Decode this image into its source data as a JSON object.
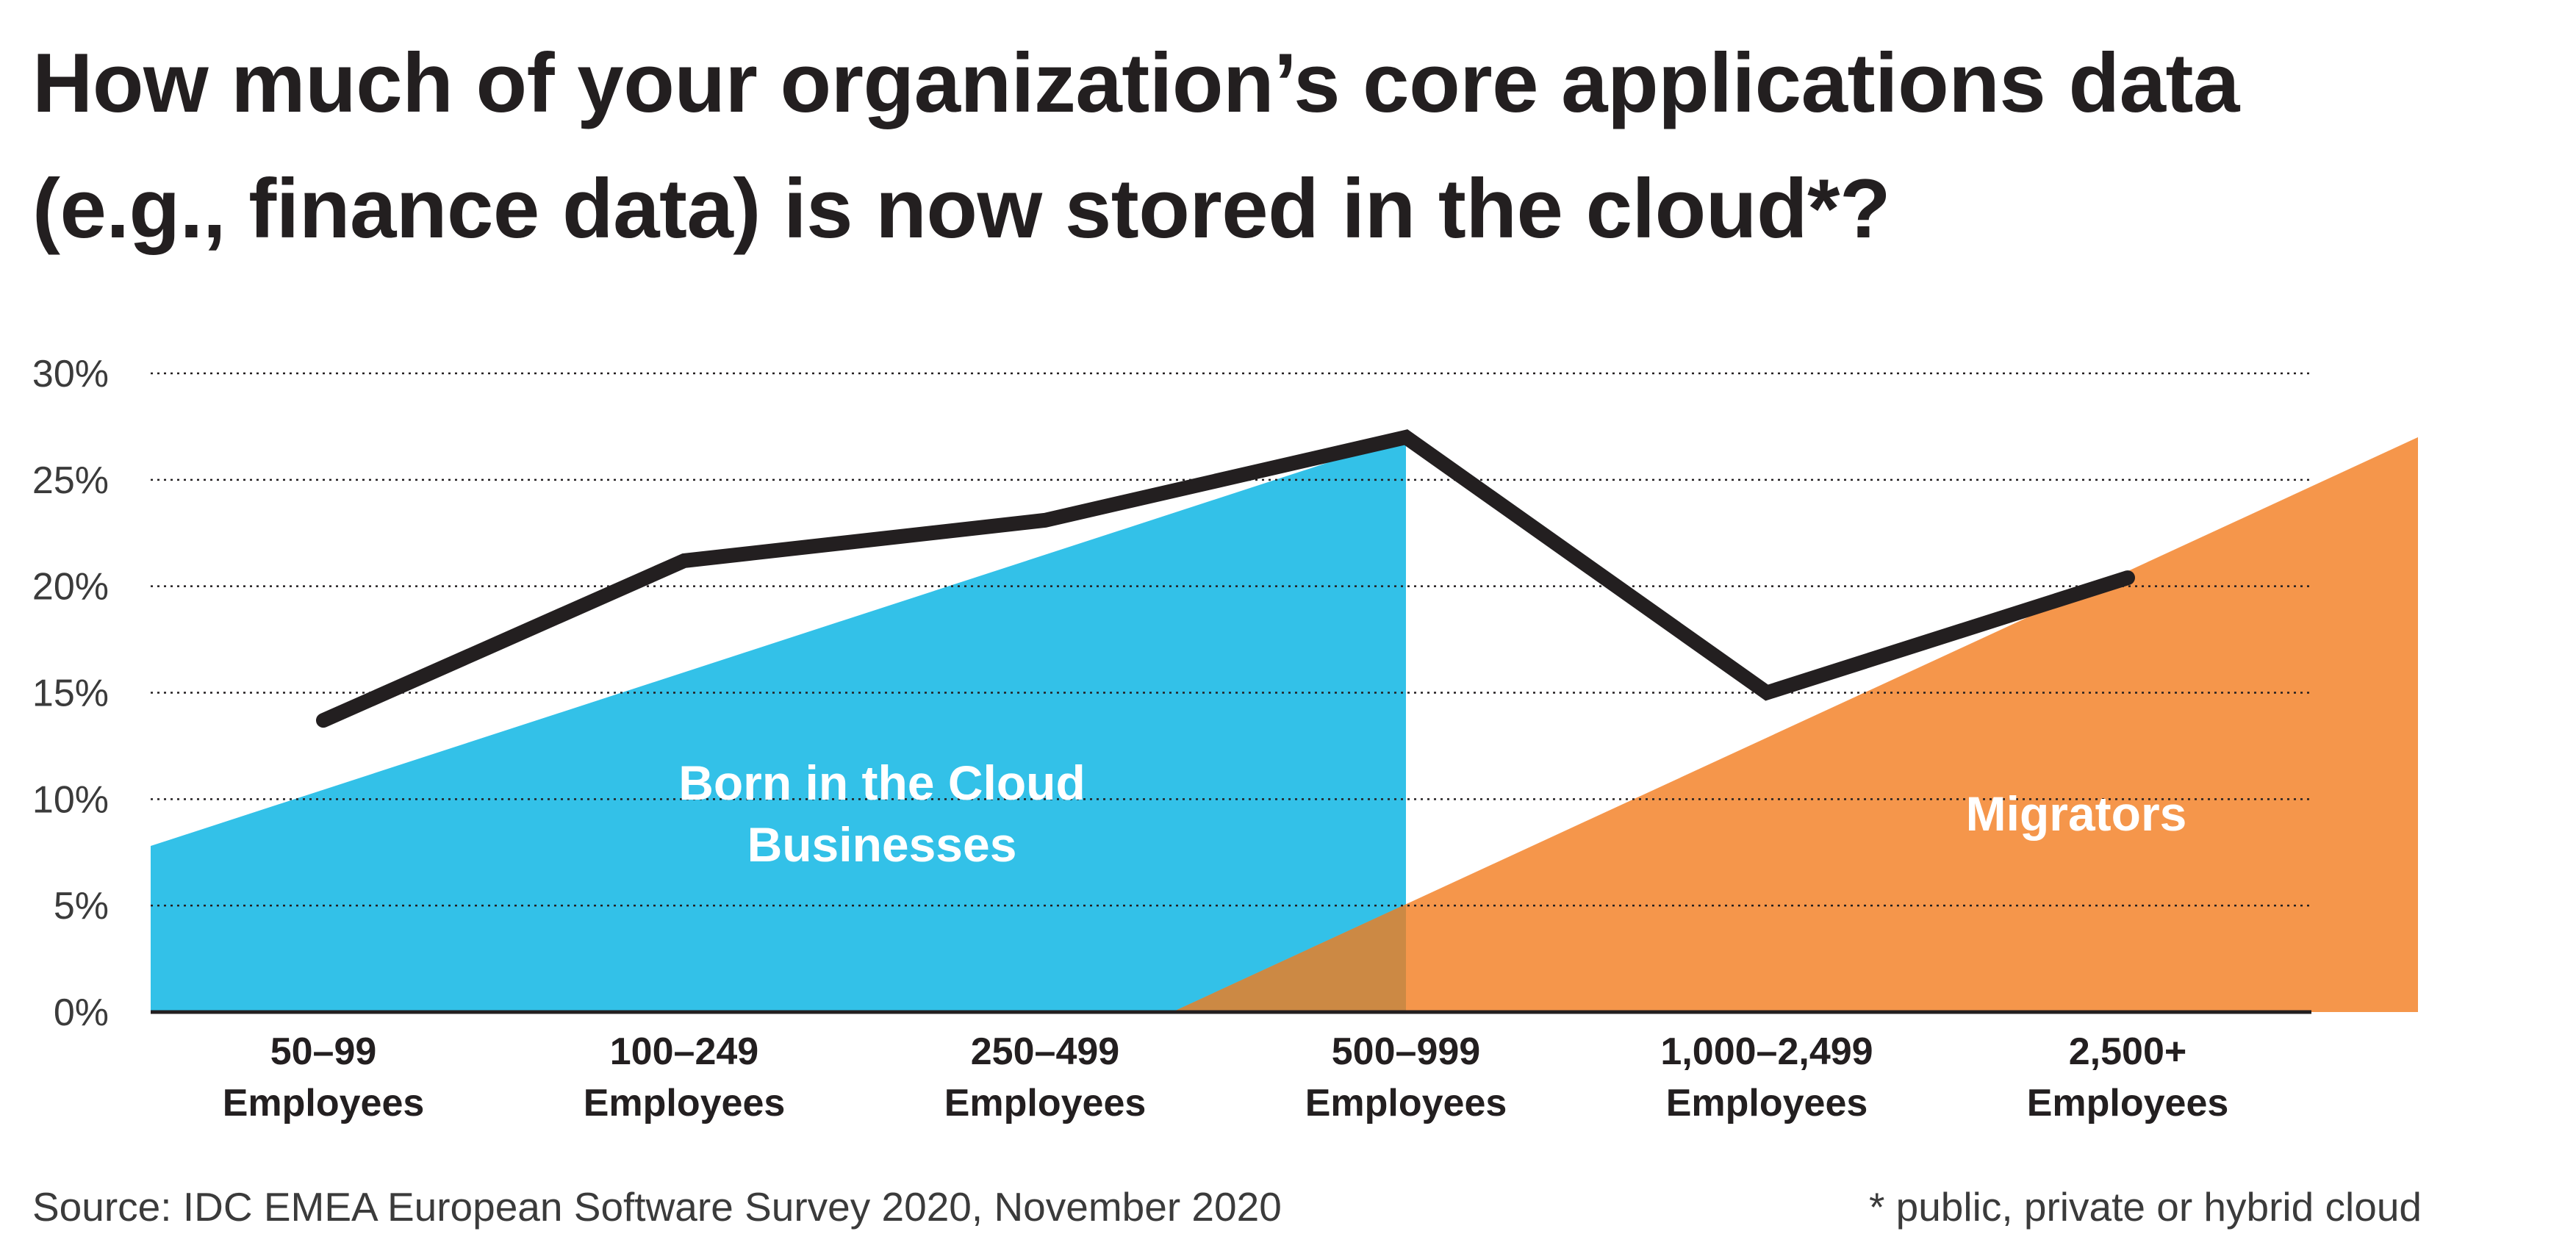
{
  "title_lines": [
    "How much of your organization’s core applications data",
    "(e.g., finance data) is now stored in the cloud*?"
  ],
  "source_text": "Source: IDC EMEA European Software Survey 2020, November 2020",
  "footnote_text": "* public, private or hybrid cloud",
  "colors": {
    "born_in_cloud": "#33c1e8",
    "migrators": "#f5964b",
    "overlap": "#cc8944",
    "line": "#231f20",
    "text": "#231f20",
    "tick_text": "#3b3b3b",
    "grid": "#231f20",
    "area_label": "#ffffff"
  },
  "chart_data": {
    "type": "line",
    "title": "How much of your organization’s core applications data (e.g., finance data) is now stored in the cloud*?",
    "categories": [
      [
        "50–99",
        "Employees"
      ],
      [
        "100–249",
        "Employees"
      ],
      [
        "250–499",
        "Employees"
      ],
      [
        "500–999",
        "Employees"
      ],
      [
        "1,000–2,499",
        "Employees"
      ],
      [
        "2,500+",
        "Employees"
      ]
    ],
    "series": [
      {
        "values": [
          13.7,
          21.2,
          23.1,
          27.0,
          15.0,
          20.4
        ]
      }
    ],
    "ylim": [
      0,
      30
    ],
    "yticks": [
      "0%",
      "5%",
      "10%",
      "15%",
      "20%",
      "25%",
      "30%"
    ],
    "grid": true,
    "background_areas": [
      {
        "label_lines": [
          "Born in the Cloud",
          "Businesses"
        ],
        "from_value": 7.8,
        "to_value": 27.0,
        "spans": "left edge to 500–999 Employees"
      },
      {
        "label_lines": [
          "Migrators"
        ],
        "from_value": 0,
        "to_value": 27.0,
        "spans": "between 250–499 and 500–999 Employees to right edge"
      }
    ]
  }
}
